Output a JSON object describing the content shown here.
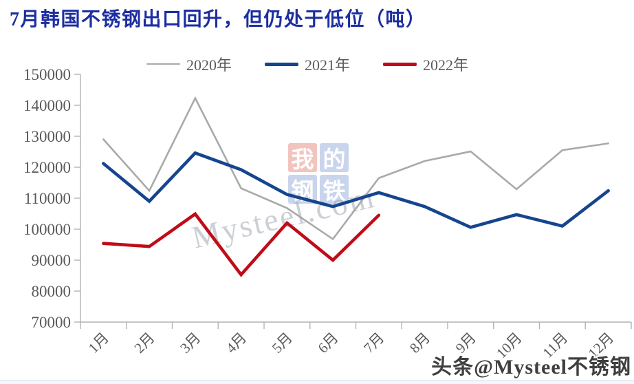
{
  "chart_data": {
    "type": "line",
    "title": "7月韩国不锈钢出口回升，但仍处于低位（吨）",
    "title_color": "#1c2ea0",
    "categories": [
      "1月",
      "2月",
      "3月",
      "4月",
      "5月",
      "6月",
      "7月",
      "8月",
      "9月",
      "10月",
      "11月",
      "12月"
    ],
    "series": [
      {
        "name": "2020年",
        "color": "#a9a9a9",
        "stroke_width": 2.6,
        "values": [
          129000,
          112400,
          142300,
          113200,
          106800,
          96800,
          116500,
          122000,
          125100,
          112900,
          125500,
          127700
        ]
      },
      {
        "name": "2021年",
        "color": "#16458e",
        "stroke_width": 4.6,
        "values": [
          121200,
          109000,
          124600,
          119200,
          111200,
          107300,
          111800,
          107300,
          100600,
          104700,
          101000,
          112400
        ]
      },
      {
        "name": "2022年",
        "color": "#c00c18",
        "stroke_width": 4.6,
        "values": [
          95400,
          94400,
          104900,
          85300,
          102000,
          90000,
          104500
        ]
      }
    ],
    "xlabel": "",
    "ylabel": "",
    "ylim": [
      70000,
      150000
    ],
    "ytick_step": 10000,
    "grid": false,
    "legend_position": "top",
    "axis_color": "#b3b3b3",
    "label_color": "#595959"
  },
  "watermarks": {
    "center_grid": [
      {
        "char": "我",
        "bg": "#e8948a"
      },
      {
        "char": "的",
        "bg": "#9db3dd"
      },
      {
        "char": "钢",
        "bg": "#9db3dd"
      },
      {
        "char": "铁",
        "bg": "#9db3dd"
      }
    ],
    "center_text": "Mysteel.com",
    "corner_text": "头条@Mysteel不锈钢"
  }
}
